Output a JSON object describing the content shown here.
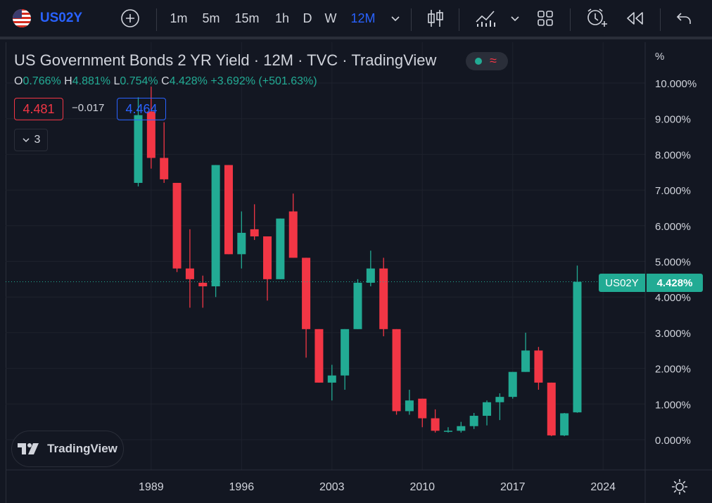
{
  "toolbar": {
    "symbol": "US02Y",
    "intervals": [
      "1m",
      "5m",
      "15m",
      "1h",
      "D",
      "W",
      "12M"
    ],
    "active_interval": "12M",
    "icons": [
      "flag-us-icon",
      "add-symbol-icon",
      "chevron-down-icon",
      "candles-icon",
      "indicators-icon",
      "layout-icon",
      "alert-icon",
      "replay-icon",
      "undo-icon"
    ]
  },
  "legend": {
    "title": "US Government Bonds 2 YR Yield · 12M · TVC · TradingView",
    "o_label": "O",
    "o_value": "0.766%",
    "h_label": "H",
    "h_value": "4.881%",
    "l_label": "L",
    "l_value": "0.754%",
    "c_label": "C",
    "c_value": "4.428%",
    "change": "+3.692% (+501.63%)",
    "bid": "4.481",
    "spread": "−0.017",
    "ask": "4.464",
    "collapsed_count": "3"
  },
  "price_axis": {
    "unit_label": "%",
    "current_symbol": "US02Y",
    "current_value": "4.428%"
  },
  "logo": {
    "text": "TradingView"
  },
  "colors": {
    "up": "#22ab94",
    "down": "#f23645",
    "accent": "#2962ff",
    "background": "#131722",
    "grid": "#1e222d"
  },
  "chart_data": {
    "type": "candlestick",
    "interval": "12M",
    "x_tick_labels": [
      "1989",
      "1996",
      "2003",
      "2010",
      "2017",
      "2024"
    ],
    "y_tick_labels": [
      "0.000%",
      "1.000%",
      "2.000%",
      "3.000%",
      "4.000%",
      "5.000%",
      "6.000%",
      "7.000%",
      "8.000%",
      "9.000%",
      "10.000%"
    ],
    "ylim": [
      -0.3,
      10.3
    ],
    "xlim": [
      1984.0,
      2027.5
    ],
    "current_price": 4.428,
    "candles": [
      {
        "year": 1988,
        "o": 7.2,
        "h": 9.6,
        "l": 7.1,
        "c": 9.1
      },
      {
        "year": 1989,
        "o": 9.2,
        "h": 9.9,
        "l": 7.6,
        "c": 7.9
      },
      {
        "year": 1990,
        "o": 7.9,
        "h": 8.9,
        "l": 7.2,
        "c": 7.3
      },
      {
        "year": 1991,
        "o": 7.2,
        "h": 7.2,
        "l": 4.7,
        "c": 4.8
      },
      {
        "year": 1992,
        "o": 4.8,
        "h": 5.9,
        "l": 3.7,
        "c": 4.5
      },
      {
        "year": 1993,
        "o": 4.4,
        "h": 4.6,
        "l": 3.7,
        "c": 4.3
      },
      {
        "year": 1994,
        "o": 4.3,
        "h": 7.7,
        "l": 4.0,
        "c": 7.7
      },
      {
        "year": 1995,
        "o": 7.7,
        "h": 7.7,
        "l": 5.2,
        "c": 5.2
      },
      {
        "year": 1996,
        "o": 5.2,
        "h": 6.4,
        "l": 4.8,
        "c": 5.8
      },
      {
        "year": 1997,
        "o": 5.9,
        "h": 6.6,
        "l": 5.6,
        "c": 5.7
      },
      {
        "year": 1998,
        "o": 5.7,
        "h": 5.7,
        "l": 3.9,
        "c": 4.5
      },
      {
        "year": 1999,
        "o": 4.5,
        "h": 6.2,
        "l": 4.5,
        "c": 6.2
      },
      {
        "year": 2000,
        "o": 6.4,
        "h": 6.9,
        "l": 5.1,
        "c": 5.1
      },
      {
        "year": 2001,
        "o": 5.1,
        "h": 5.1,
        "l": 2.3,
        "c": 3.1
      },
      {
        "year": 2002,
        "o": 3.1,
        "h": 3.1,
        "l": 1.6,
        "c": 1.6
      },
      {
        "year": 2003,
        "o": 1.6,
        "h": 2.1,
        "l": 1.1,
        "c": 1.8
      },
      {
        "year": 2004,
        "o": 1.8,
        "h": 3.1,
        "l": 1.4,
        "c": 3.1
      },
      {
        "year": 2005,
        "o": 3.1,
        "h": 4.5,
        "l": 3.1,
        "c": 4.4
      },
      {
        "year": 2006,
        "o": 4.4,
        "h": 5.3,
        "l": 4.3,
        "c": 4.8
      },
      {
        "year": 2007,
        "o": 4.8,
        "h": 5.1,
        "l": 2.9,
        "c": 3.1
      },
      {
        "year": 2008,
        "o": 3.1,
        "h": 3.1,
        "l": 0.7,
        "c": 0.8
      },
      {
        "year": 2009,
        "o": 0.8,
        "h": 1.4,
        "l": 0.7,
        "c": 1.1
      },
      {
        "year": 2010,
        "o": 1.15,
        "h": 1.15,
        "l": 0.35,
        "c": 0.6
      },
      {
        "year": 2011,
        "o": 0.6,
        "h": 0.85,
        "l": 0.2,
        "c": 0.25
      },
      {
        "year": 2012,
        "o": 0.25,
        "h": 0.35,
        "l": 0.2,
        "c": 0.25
      },
      {
        "year": 2013,
        "o": 0.25,
        "h": 0.5,
        "l": 0.2,
        "c": 0.38
      },
      {
        "year": 2014,
        "o": 0.38,
        "h": 0.75,
        "l": 0.3,
        "c": 0.67
      },
      {
        "year": 2015,
        "o": 0.67,
        "h": 1.1,
        "l": 0.4,
        "c": 1.05
      },
      {
        "year": 2016,
        "o": 1.05,
        "h": 1.3,
        "l": 0.55,
        "c": 1.2
      },
      {
        "year": 2017,
        "o": 1.2,
        "h": 1.9,
        "l": 1.15,
        "c": 1.9
      },
      {
        "year": 2018,
        "o": 1.9,
        "h": 3.0,
        "l": 1.9,
        "c": 2.5
      },
      {
        "year": 2019,
        "o": 2.5,
        "h": 2.6,
        "l": 1.4,
        "c": 1.6
      },
      {
        "year": 2020,
        "o": 1.6,
        "h": 1.6,
        "l": 0.1,
        "c": 0.12
      },
      {
        "year": 2021,
        "o": 0.12,
        "h": 0.75,
        "l": 0.1,
        "c": 0.74
      },
      {
        "year": 2022,
        "o": 0.766,
        "h": 4.881,
        "l": 0.754,
        "c": 4.428
      }
    ]
  }
}
